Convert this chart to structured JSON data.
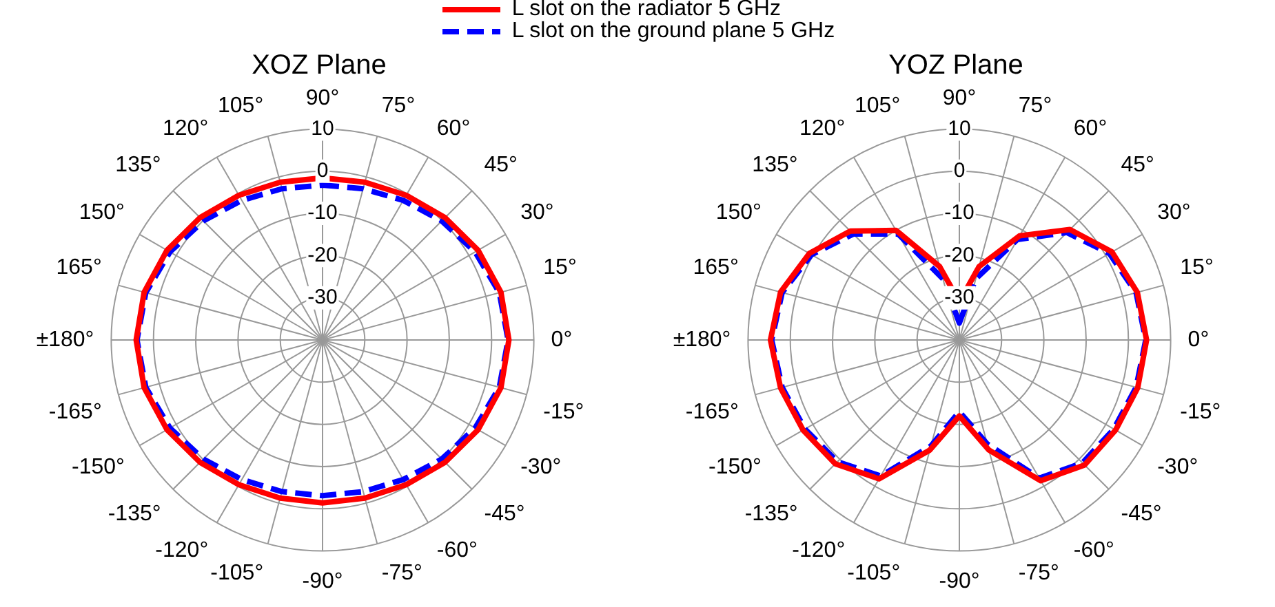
{
  "chart_data": [
    {
      "type": "radar",
      "title": "XOZ Plane",
      "categories": [
        "90°",
        "75°",
        "60°",
        "45°",
        "30°",
        "15°",
        "0°",
        "-15°",
        "-30°",
        "-45°",
        "-60°",
        "-75°",
        "-90°",
        "-105°",
        "-120°",
        "-135°",
        "-150°",
        "-165°",
        "±180°",
        "165°",
        "150°",
        "135°",
        "120°",
        "105°"
      ],
      "series": [
        {
          "name": "L slot on the radiator 5 GHz",
          "color": "#ff0000",
          "line_style": "solid",
          "values": [
            -1.6,
            -1.3,
            -0.4,
            1.0,
            2.5,
            3.7,
            4.1,
            3.7,
            2.5,
            1.0,
            -0.4,
            -1.2,
            -1.4,
            -1.2,
            -0.4,
            1.0,
            2.5,
            3.7,
            4.1,
            3.7,
            2.5,
            1.0,
            -0.4,
            -1.3
          ]
        },
        {
          "name": "L slot on the ground plane 5 GHz",
          "color": "#0000ff",
          "line_style": "dashed",
          "values": [
            -3.3,
            -2.9,
            -1.8,
            -0.1,
            1.7,
            3.3,
            3.9,
            3.3,
            1.7,
            -0.1,
            -1.8,
            -2.8,
            -3.1,
            -2.8,
            -1.8,
            -0.1,
            1.7,
            3.3,
            3.9,
            3.3,
            1.7,
            -0.1,
            -1.8,
            -2.9
          ]
        }
      ],
      "ylim": [
        -40,
        10
      ],
      "yticks": [
        -30,
        -20,
        -10,
        0,
        10
      ],
      "grid": true,
      "legend": "top",
      "marker": "none"
    },
    {
      "type": "radar",
      "title": "YOZ Plane",
      "categories": [
        "90°",
        "75°",
        "60°",
        "45°",
        "30°",
        "15°",
        "0°",
        "-15°",
        "-30°",
        "-45°",
        "-60°",
        "-75°",
        "-90°",
        "-105°",
        "-120°",
        "-135°",
        "-150°",
        "-165°",
        "±180°",
        "165°",
        "150°",
        "135°",
        "120°",
        "105°"
      ],
      "series": [
        {
          "color": "#ff0000",
          "line_style": "solid",
          "values": [
            -31,
            -22,
            -11.5,
            -3,
            1.7,
            3.6,
            4.3,
            3.7,
            2.7,
            1.9,
            -1.5,
            -13,
            -22,
            -13,
            -2,
            1.5,
            2.7,
            3.8,
            4.7,
            3.8,
            1.0,
            -3.5,
            -10,
            -22
          ]
        },
        {
          "color": "#0000ff",
          "line_style": "dashed",
          "values": [
            -36,
            -25,
            -12.5,
            -4,
            1.0,
            3.3,
            4.1,
            3.3,
            2.2,
            1.2,
            -2.2,
            -14.5,
            -23,
            -14,
            -2.8,
            0.8,
            2.2,
            3.4,
            4.4,
            3.4,
            0.4,
            -4.5,
            -11,
            -25
          ]
        }
      ],
      "ylim": [
        -40,
        10
      ],
      "yticks": [
        -30,
        -20,
        -10,
        0,
        10
      ],
      "grid": true,
      "marker": "none"
    }
  ]
}
